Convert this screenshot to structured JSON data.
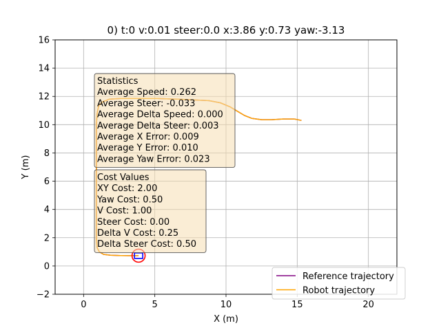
{
  "chart_data": {
    "type": "line",
    "title": "0) t:0 v:0.01 steer:0.0 x:3.86 y:0.73 yaw:-3.13",
    "xlabel": "X (m)",
    "ylabel": "Y (m)",
    "xlim": [
      -2,
      22
    ],
    "ylim": [
      -2,
      16
    ],
    "xticks": [
      0,
      5,
      10,
      15,
      20
    ],
    "yticks": [
      -2,
      0,
      2,
      4,
      6,
      8,
      10,
      12,
      14,
      16
    ],
    "grid": true,
    "legend_position": "bottom-right",
    "series": [
      {
        "name": "Reference trajectory",
        "color": "#800080",
        "x": [
          15.3,
          14.8,
          14.0,
          13.2,
          12.5,
          11.8,
          11.3,
          10.8,
          10.3,
          9.6,
          8.8,
          7.8,
          6.6,
          5.2,
          3.8,
          2.6,
          1.8,
          1.3,
          1.05,
          0.95,
          0.9,
          0.9,
          0.9,
          0.9,
          0.9,
          0.95,
          1.1,
          1.4,
          1.9,
          2.6,
          3.2,
          3.86
        ],
        "y": [
          10.3,
          10.4,
          10.4,
          10.35,
          10.35,
          10.45,
          10.65,
          10.95,
          11.25,
          11.55,
          11.7,
          11.75,
          11.8,
          11.85,
          11.85,
          11.85,
          11.8,
          11.6,
          11.3,
          10.8,
          10.0,
          8.0,
          6.0,
          4.0,
          2.0,
          1.3,
          1.0,
          0.82,
          0.76,
          0.74,
          0.73,
          0.73
        ]
      },
      {
        "name": "Robot trajectory",
        "color": "#ffa500",
        "x": [
          15.3,
          14.8,
          14.0,
          13.2,
          12.5,
          11.8,
          11.3,
          10.8,
          10.3,
          9.6,
          8.8,
          7.8,
          6.6,
          5.2,
          3.8,
          2.6,
          1.8,
          1.3,
          1.05,
          0.95,
          0.9,
          0.9,
          0.9,
          0.9,
          0.9,
          0.95,
          1.1,
          1.4,
          1.9,
          2.6,
          3.2,
          3.86
        ],
        "y": [
          10.3,
          10.4,
          10.4,
          10.35,
          10.35,
          10.45,
          10.65,
          10.95,
          11.25,
          11.55,
          11.7,
          11.75,
          11.8,
          11.85,
          11.85,
          11.85,
          11.8,
          11.6,
          11.3,
          10.8,
          10.0,
          8.0,
          6.0,
          4.0,
          2.0,
          1.3,
          1.0,
          0.82,
          0.76,
          0.74,
          0.73,
          0.73
        ]
      }
    ],
    "robot": {
      "x": 3.86,
      "y": 0.73,
      "circle_color": "#ff0000",
      "box_color": "#0000ff"
    },
    "annotations": {
      "statistics": {
        "lines": [
          "Statistics",
          "Average Speed: 0.262",
          "Average Steer: -0.033",
          "Average Delta Speed: 0.000",
          "Average Delta Steer: 0.003",
          "Average X Error: 0.009",
          "Average Y Error: 0.010",
          "Average Yaw Error: 0.023"
        ]
      },
      "cost_values": {
        "lines": [
          "Cost Values",
          "XY Cost: 2.00",
          "Yaw Cost: 0.50",
          "V Cost: 1.00",
          "Steer Cost: 0.00",
          "Delta V Cost: 0.25",
          "Delta Steer Cost: 0.50"
        ]
      }
    }
  }
}
